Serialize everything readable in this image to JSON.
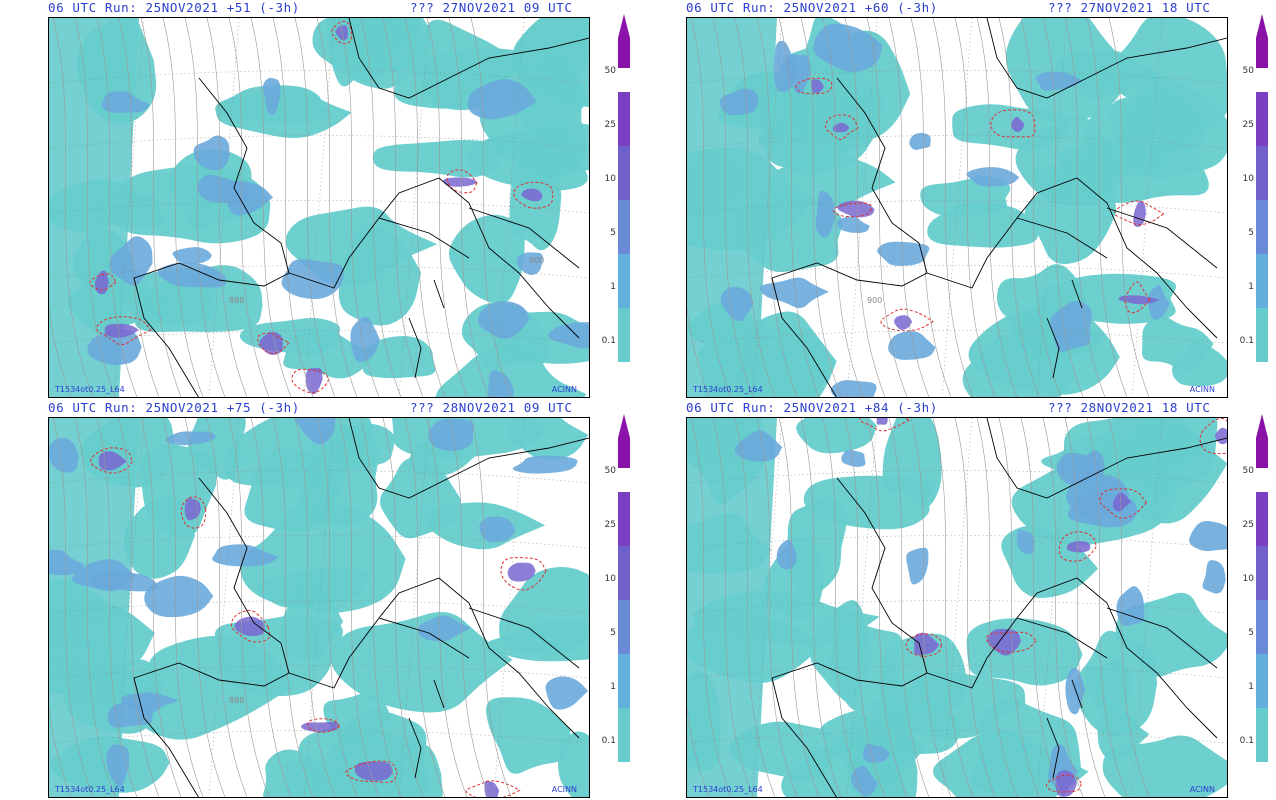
{
  "panels": [
    {
      "header_left": "06 UTC Run: 25NOV2021 +51 (-3h)",
      "header_right": "??? 27NOV2021 09 UTC",
      "model_tag": "T1534ot0.25_L64",
      "credit": "ACINN",
      "contour_labels": [
        "888",
        "900"
      ]
    },
    {
      "header_left": "06 UTC Run: 25NOV2021 +60 (-3h)",
      "header_right": "??? 27NOV2021 18 UTC",
      "model_tag": "T1534ot0.25_L64",
      "credit": "ACINN",
      "contour_labels": [
        "900"
      ]
    },
    {
      "header_left": "06 UTC Run: 25NOV2021 +75 (-3h)",
      "header_right": "??? 28NOV2021 09 UTC",
      "model_tag": "T1534ot0.25_L64",
      "credit": "ACINN",
      "contour_labels": [
        "888"
      ]
    },
    {
      "header_left": "06 UTC Run: 25NOV2021 +84 (-3h)",
      "header_right": "??? 28NOV2021 18 UTC",
      "model_tag": "T1534ot0.25_L64",
      "credit": "ACINN",
      "contour_labels": []
    }
  ],
  "colorbar": {
    "labels": [
      "50",
      "25",
      "10",
      "5",
      "1",
      "0.1"
    ],
    "colors": [
      "#8a12a8",
      "#7a3fc2",
      "#7060cc",
      "#6a8ad8",
      "#62aedc",
      "#66cccc"
    ]
  },
  "colors": {
    "header_text": "#2a3fd0",
    "precip_light": "#66cccc",
    "precip_mid": "#6aa8dc",
    "precip_heavy": "#7a66d0",
    "dashed_contour": "#e03030"
  }
}
